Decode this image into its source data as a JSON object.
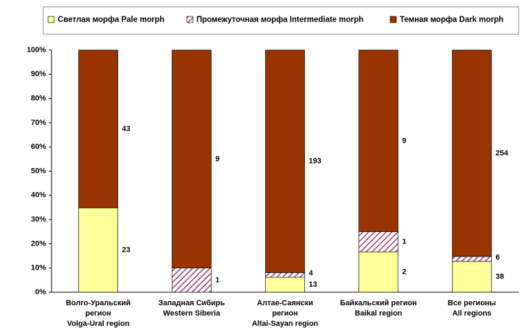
{
  "chart_data": {
    "type": "bar",
    "stacking": "percent",
    "categories": [
      [
        "Волго-Уральский",
        "регион",
        "Volga-Ural region"
      ],
      [
        "Западная Сибирь",
        "Western Siberia"
      ],
      [
        "Алтае-Саянски",
        "регион",
        "Altai-Sayan region"
      ],
      [
        "Байкальский регион",
        "Baikal region"
      ],
      [
        "Все регионы",
        "All regions"
      ]
    ],
    "series": [
      {
        "name": "Светлая морфа Pale morph",
        "color": "#ffff99",
        "values": [
          23,
          0,
          13,
          2,
          38
        ]
      },
      {
        "name": "Промежуточная морфа Intermediate morph",
        "color": "#993366",
        "pattern": "hatch",
        "values": [
          0,
          1,
          4,
          1,
          6
        ]
      },
      {
        "name": "Темная морфа Dark morph",
        "color": "#993300",
        "values": [
          43,
          9,
          193,
          9,
          254
        ]
      }
    ],
    "ylim": [
      0,
      100
    ],
    "yticks": [
      {
        "value": 0,
        "label": "0%"
      },
      {
        "value": 10,
        "label": "10%"
      },
      {
        "value": 20,
        "label": "20%"
      },
      {
        "value": 30,
        "label": "30%"
      },
      {
        "value": 40,
        "label": "40%"
      },
      {
        "value": 50,
        "label": "50%"
      },
      {
        "value": 60,
        "label": "60%"
      },
      {
        "value": 70,
        "label": "70%"
      },
      {
        "value": 80,
        "label": "80%"
      },
      {
        "value": 90,
        "label": "90%"
      },
      {
        "value": 100,
        "label": "100%"
      }
    ],
    "legend": "top"
  }
}
